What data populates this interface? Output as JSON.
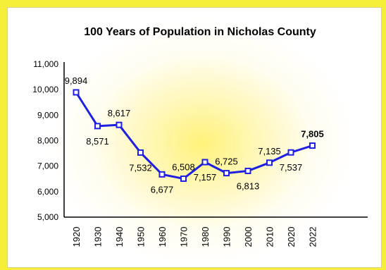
{
  "chart_data": {
    "type": "line",
    "title": "100 Years of Population in Nicholas County",
    "xlabel": "",
    "ylabel": "",
    "categories": [
      "1920",
      "1930",
      "1940",
      "1950",
      "1960",
      "1970",
      "1980",
      "1990",
      "2000",
      "2010",
      "2020",
      "2022"
    ],
    "series": [
      {
        "values": [
          9894,
          8571,
          8617,
          7532,
          6677,
          6508,
          7157,
          6725,
          6813,
          7135,
          7537,
          7805
        ],
        "data_labels": [
          "9,894",
          "8,571",
          "8,617",
          "7,532",
          "6,677",
          "6,508",
          "7,157",
          "6,725",
          "6,813",
          "7,135",
          "7,537",
          "7,805"
        ],
        "color": "#1f1fe0"
      }
    ],
    "ylim": [
      5000,
      11000
    ],
    "yticks": [
      "5,000",
      "6,000",
      "7,000",
      "8,000",
      "9,000",
      "10,000",
      "11,000"
    ],
    "grid": false,
    "legend": "none",
    "colors": {
      "border": "#f5ef3a",
      "glow": "#fff27a",
      "line": "#1f1fe0"
    }
  }
}
